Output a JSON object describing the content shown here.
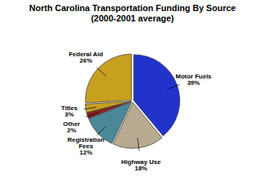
{
  "chart_data": {
    "type": "pie",
    "title": "North Carolina Transportation Funding By Source",
    "subtitle": "(2000-2001 average)",
    "categories": [
      "Motor Fuels",
      "Highway Use",
      "Registration\nFees",
      "Other",
      "Titles",
      "Federal Aid"
    ],
    "values": [
      39,
      18,
      12,
      2,
      3,
      26
    ],
    "value_labels": [
      "39%",
      "18%",
      "12%",
      "2%",
      "3%",
      "26%"
    ],
    "colors": [
      "#2233cc",
      "#b8aa90",
      "#4a8898",
      "#8b2020",
      "#c8a020",
      "#c8a020"
    ],
    "data_labels": true
  }
}
